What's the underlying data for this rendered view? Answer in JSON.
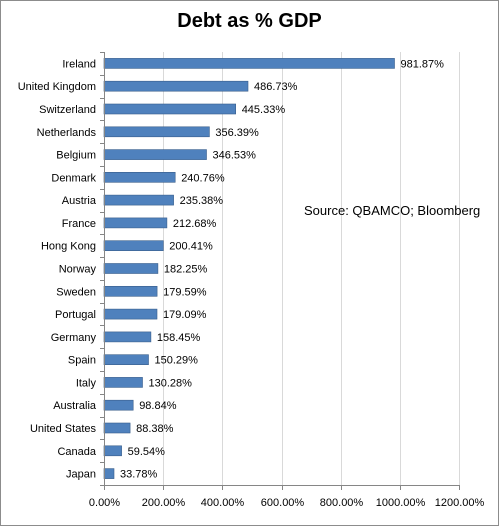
{
  "chart_data": {
    "type": "bar",
    "orientation": "horizontal",
    "title": "Debt as % GDP",
    "annotation": "Source: QBAMCO; Bloomberg",
    "categories": [
      "Ireland",
      "United Kingdom",
      "Switzerland",
      "Netherlands",
      "Belgium",
      "Denmark",
      "Austria",
      "France",
      "Hong Kong",
      "Norway",
      "Sweden",
      "Portugal",
      "Germany",
      "Spain",
      "Italy",
      "Australia",
      "United States",
      "Canada",
      "Japan"
    ],
    "values": [
      981.87,
      486.73,
      445.33,
      356.39,
      346.53,
      240.76,
      235.38,
      212.68,
      200.41,
      182.25,
      179.59,
      179.09,
      158.45,
      150.29,
      130.28,
      98.84,
      88.38,
      59.54,
      33.78
    ],
    "value_labels": [
      "981.87%",
      "486.73%",
      "445.33%",
      "356.39%",
      "346.53%",
      "240.76%",
      "235.38%",
      "212.68%",
      "200.41%",
      "182.25%",
      "179.59%",
      "179.09%",
      "158.45%",
      "150.29%",
      "130.28%",
      "98.84%",
      "88.38%",
      "59.54%",
      "33.78%"
    ],
    "x_ticks": [
      0,
      200,
      400,
      600,
      800,
      1000,
      1200
    ],
    "x_tick_labels": [
      "0.00%",
      "200.00%",
      "400.00%",
      "600.00%",
      "800.00%",
      "1000.00%",
      "1200.00%"
    ],
    "xlim": [
      0,
      1200
    ],
    "xlabel": "",
    "ylabel": "",
    "grid": "vertical",
    "legend": "none",
    "bar_color": "#4f81bd",
    "bar_border_color": "#385d8a",
    "grid_color": "#d9d9d9",
    "axis_color": "#868686"
  }
}
